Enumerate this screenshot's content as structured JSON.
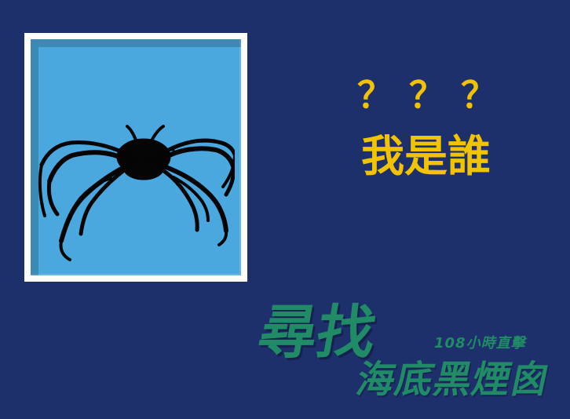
{
  "colors": {
    "background": "#1d306b",
    "frame": "#ffffff",
    "frame_inner": "#4aa8df",
    "accent_yellow": "#f2c300",
    "logo_green": "#218a66"
  },
  "quiz": {
    "question_marks": "？？？",
    "who_am_i": "我是誰"
  },
  "logo": {
    "title_main": "尋找",
    "title_sub": "海底黑煙囪",
    "badge": "108小時直擊"
  },
  "image": {
    "name": "crab-silhouette"
  }
}
